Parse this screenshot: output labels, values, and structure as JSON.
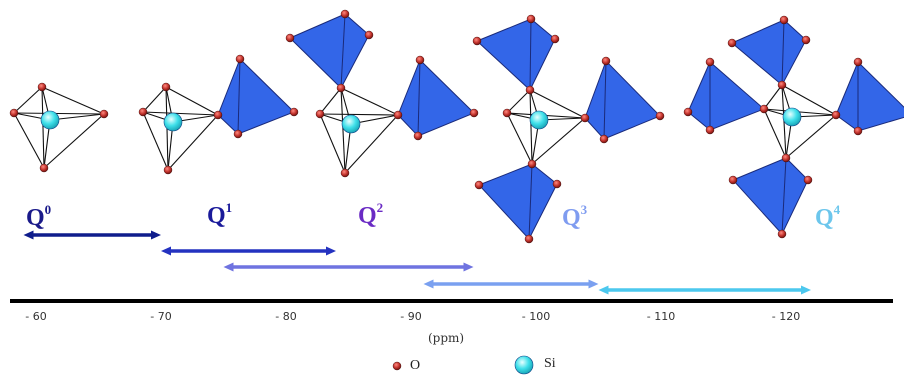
{
  "species": [
    {
      "base": "Q",
      "sup": "0",
      "color": "#1a1a8a"
    },
    {
      "base": "Q",
      "sup": "1",
      "color": "#1a1a9a"
    },
    {
      "base": "Q",
      "sup": "2",
      "color": "#6a2bc4"
    },
    {
      "base": "Q",
      "sup": "3",
      "color": "#7f9cf0"
    },
    {
      "base": "Q",
      "sup": "4",
      "color": "#6cc6ec"
    }
  ],
  "axis": {
    "unit": "(ppm)",
    "ticks": [
      "- 60",
      "- 70",
      "- 80",
      "- 90",
      "- 100",
      "- 110",
      "- 120"
    ],
    "tick_values": [
      -60,
      -70,
      -80,
      -90,
      -100,
      -110,
      -120
    ]
  },
  "ranges": [
    {
      "species": "Q0",
      "from": -59,
      "to": -70,
      "color": "#0f1d8c"
    },
    {
      "species": "Q1",
      "from": -70,
      "to": -84,
      "color": "#2432c0"
    },
    {
      "species": "Q2",
      "from": -75,
      "to": -95,
      "color": "#6f73e0"
    },
    {
      "species": "Q3",
      "from": -91,
      "to": -105,
      "color": "#7aa0f0"
    },
    {
      "species": "Q4",
      "from": -105,
      "to": -122,
      "color": "#4cc8ee"
    }
  ],
  "legend": {
    "oxygen_label": "O",
    "silicon_label": "Si"
  },
  "colors": {
    "tetrahedron_fill": "#3366e8",
    "oxygen": "#c0312b",
    "silicon": "#3fe0ea"
  }
}
